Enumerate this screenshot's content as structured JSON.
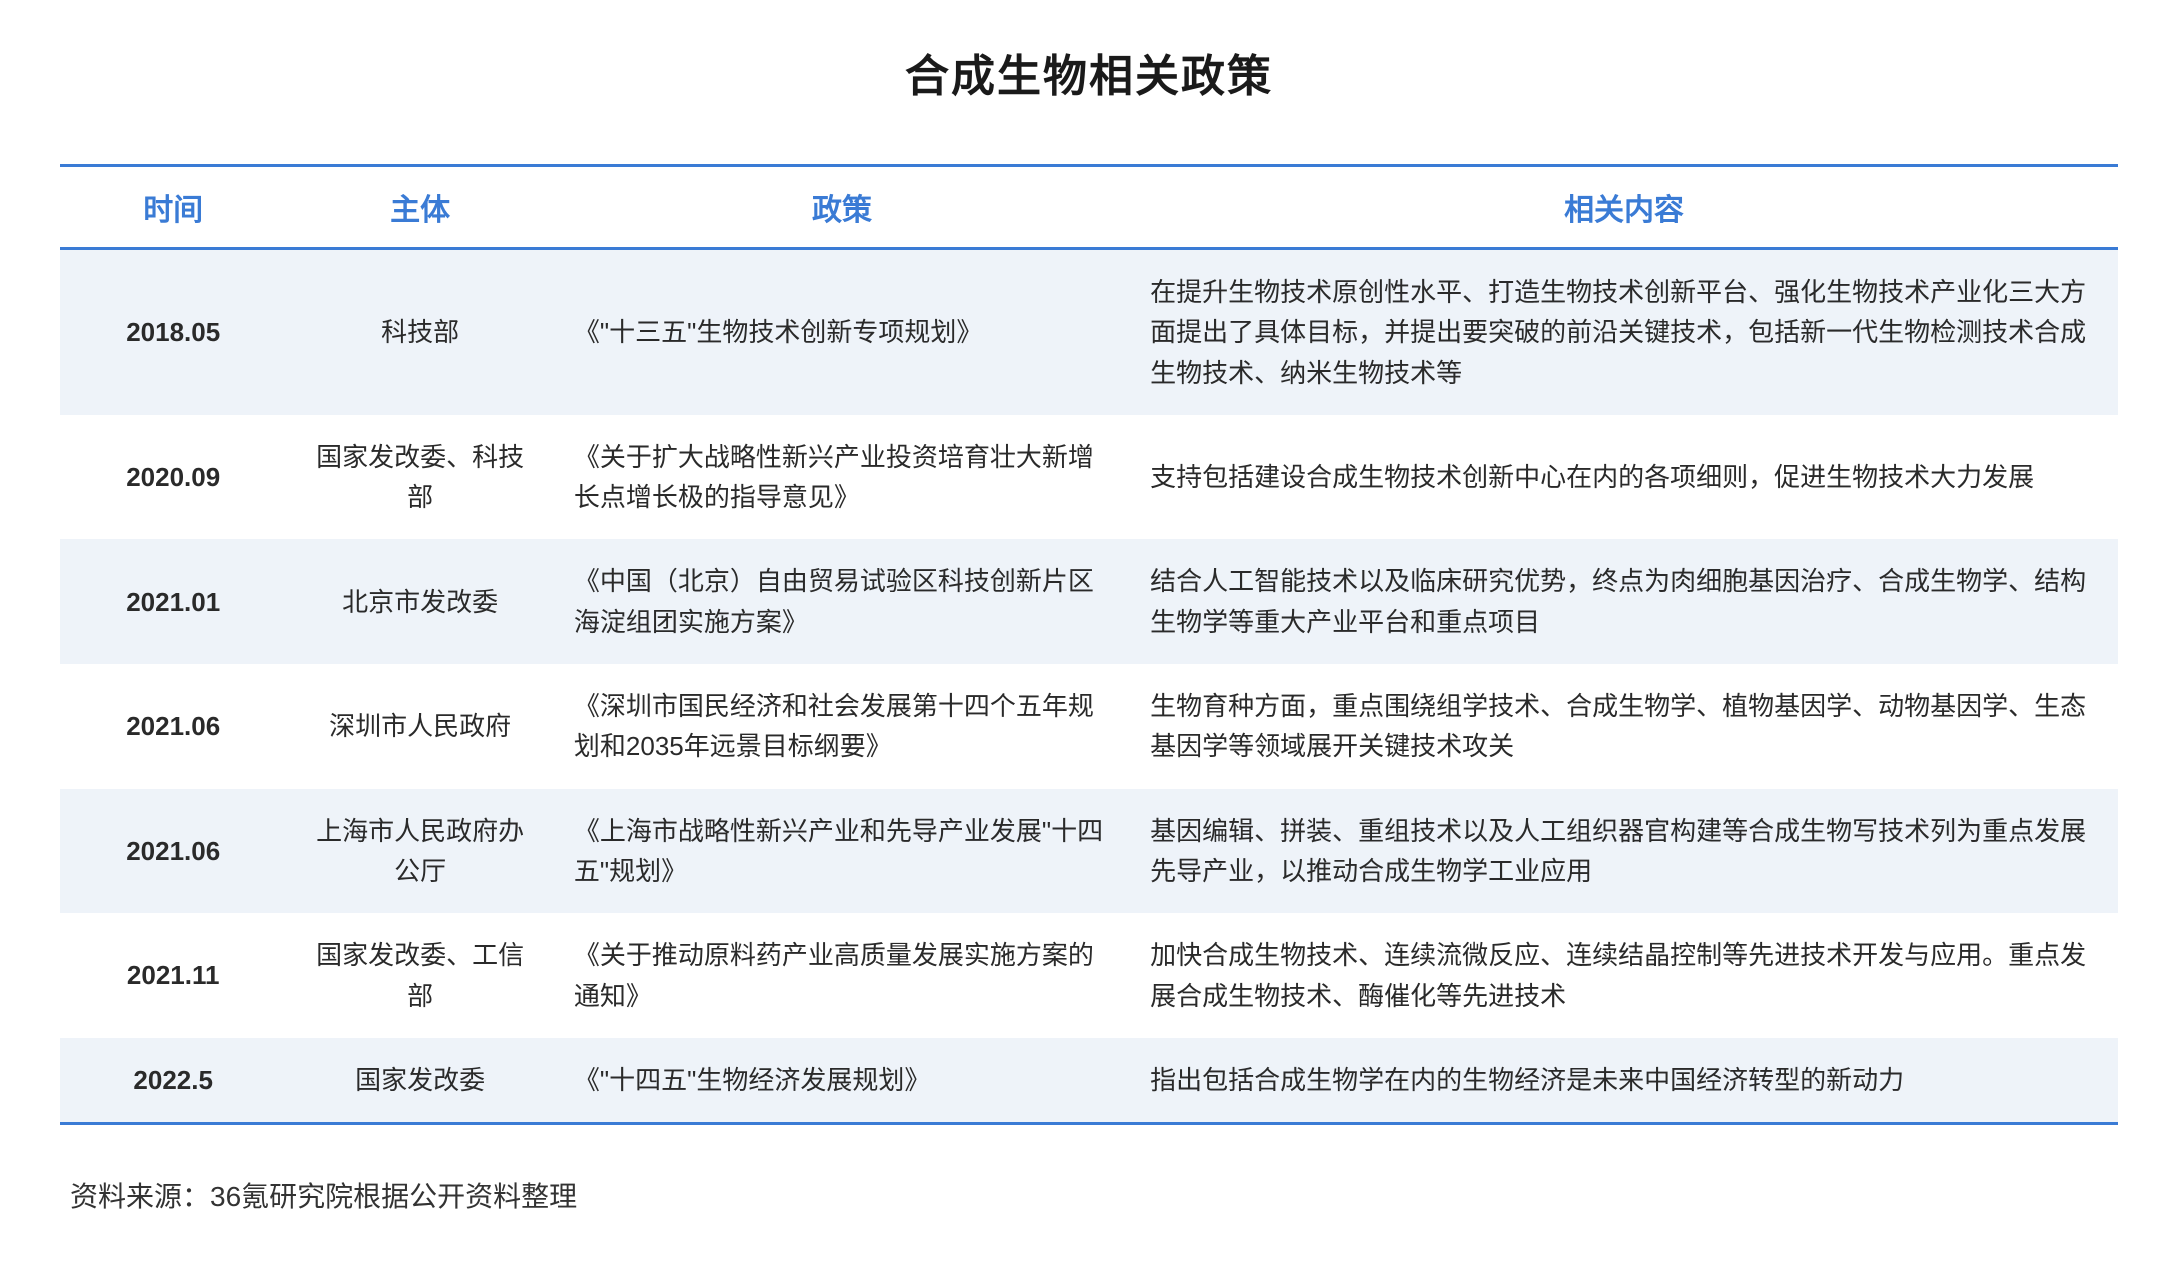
{
  "title": "合成生物相关政策",
  "columns": [
    "时间",
    "主体",
    "政策",
    "相关内容"
  ],
  "rows": [
    {
      "time": "2018.05",
      "entity": "科技部",
      "policy": "《\"十三五\"生物技术创新专项规划》",
      "content": "在提升生物技术原创性水平、打造生物技术创新平台、强化生物技术产业化三大方面提出了具体目标，并提出要突破的前沿关键技术，包括新一代生物检测技术合成生物技术、纳米生物技术等"
    },
    {
      "time": "2020.09",
      "entity": "国家发改委、科技部",
      "policy": "《关于扩大战略性新兴产业投资培育壮大新增长点增长极的指导意见》",
      "content": "支持包括建设合成生物技术创新中心在内的各项细则，促进生物技术大力发展"
    },
    {
      "time": "2021.01",
      "entity": "北京市发改委",
      "policy": "《中国（北京）自由贸易试验区科技创新片区海淀组团实施方案》",
      "content": "结合人工智能技术以及临床研究优势，终点为肉细胞基因治疗、合成生物学、结构生物学等重大产业平台和重点项目"
    },
    {
      "time": "2021.06",
      "entity": "深圳市人民政府",
      "policy": "《深圳市国民经济和社会发展第十四个五年规划和2035年远景目标纲要》",
      "content": "生物育种方面，重点围绕组学技术、合成生物学、植物基因学、动物基因学、生态基因学等领域展开关键技术攻关"
    },
    {
      "time": "2021.06",
      "entity": "上海市人民政府办公厅",
      "policy": "《上海市战略性新兴产业和先导产业发展\"十四五\"规划》",
      "content": "基因编辑、拼装、重组技术以及人工组织器官构建等合成生物写技术列为重点发展先导产业，以推动合成生物学工业应用"
    },
    {
      "time": "2021.11",
      "entity": "国家发改委、工信部",
      "policy": "《关于推动原料药产业高质量发展实施方案的通知》",
      "content": "加快合成生物技术、连续流微反应、连续结晶控制等先进技术开发与应用。重点发展合成生物技术、酶催化等先进技术"
    },
    {
      "time": "2022.5",
      "entity": "国家发改委",
      "policy": "《\"十四五\"生物经济发展规划》",
      "content": "指出包括合成生物学在内的生物经济是未来中国经济转型的新动力"
    }
  ],
  "source": "资料来源：36氪研究院根据公开资料整理",
  "colors": {
    "header_text": "#3a7bd5",
    "border": "#3a7bd5",
    "row_alt_bg": "#eef3f9",
    "body_text": "#2a2a2a",
    "background": "#ffffff"
  }
}
